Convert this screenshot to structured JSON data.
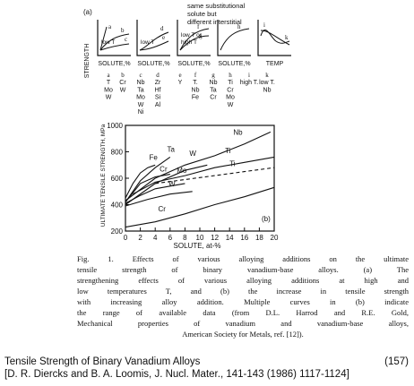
{
  "panel_a": {
    "label": "(a)",
    "annotation": [
      "same substitutional",
      "solute but",
      "different interstitial"
    ],
    "ylabel": "STRENGTH",
    "box_labels": [
      [
        "a",
        "b",
        "c"
      ],
      [
        "d",
        "e"
      ],
      [
        "f",
        "g"
      ],
      [
        "h"
      ],
      [
        "i",
        "k"
      ]
    ],
    "box_notes": [
      [
        "low T"
      ],
      [
        "low T"
      ],
      [
        "low T or",
        "high T"
      ],
      [],
      []
    ],
    "xlabels": [
      "SOLUTE,%",
      "SOLUTE,%",
      "SOLUTE,%",
      "SOLUTE,%",
      "TEMP"
    ],
    "columns": [
      {
        "head": "a",
        "items": [
          "T",
          "Mo",
          "W"
        ]
      },
      {
        "head": "b",
        "items": [
          "Cr",
          "W"
        ]
      },
      {
        "head": "c",
        "items": [
          "Nb",
          "Ta",
          "Mo",
          "W",
          "Ni"
        ]
      },
      {
        "head": "d",
        "items": [
          "Zr",
          "Hf",
          "Si",
          "Al"
        ]
      },
      {
        "head": "e",
        "items": [
          "Y"
        ]
      },
      {
        "head": "f",
        "items": [
          "T.",
          "Nb",
          "Fe"
        ]
      },
      {
        "head": "g",
        "items": [
          "Nb",
          "Ta",
          "Cr"
        ]
      },
      {
        "head": "h",
        "items": [
          "Ti",
          "Cr",
          "Mo",
          "W"
        ]
      },
      {
        "head": "i",
        "items": [
          "high T."
        ]
      },
      {
        "head": "k",
        "items": [
          "low T.",
          "Nb"
        ]
      }
    ]
  },
  "panel_b": {
    "label": "(b)",
    "ylabel": "ULTIMATE TENSILE STRENGTH, MPa",
    "xlabel": "SOLUTE, at-%",
    "curve_labels": [
      "Nb",
      "Ta",
      "W",
      "Fe",
      "Ti",
      "Cr",
      "Mo",
      "Ti",
      "W",
      "Cr"
    ]
  },
  "chart_data": {
    "type": "line",
    "title": "",
    "xlabel": "SOLUTE, at-%",
    "ylabel": "ULTIMATE TENSILE STRENGTH, MPa",
    "xlim": [
      0,
      20
    ],
    "ylim": [
      200,
      1000
    ],
    "xticks": [
      0,
      2,
      4,
      6,
      8,
      10,
      12,
      14,
      16,
      18,
      20
    ],
    "yticks": [
      200,
      400,
      600,
      800,
      1000
    ],
    "series": [
      {
        "name": "Nb",
        "x": [
          0,
          4,
          8,
          12,
          16,
          19.5
        ],
        "y": [
          430,
          600,
          700,
          770,
          860,
          950
        ]
      },
      {
        "name": "Ta",
        "x": [
          0,
          2,
          4,
          6
        ],
        "y": [
          420,
          580,
          680,
          760
        ]
      },
      {
        "name": "W",
        "x": [
          0,
          4,
          8,
          11
        ],
        "y": [
          400,
          560,
          660,
          700
        ]
      },
      {
        "name": "Fe",
        "x": [
          0,
          1,
          2,
          3,
          4
        ],
        "y": [
          450,
          560,
          640,
          680,
          700
        ]
      },
      {
        "name": "Ti",
        "x": [
          1,
          4,
          8,
          12,
          16,
          20
        ],
        "y": [
          480,
          570,
          620,
          680,
          720,
          760
        ]
      },
      {
        "name": "Ti",
        "x": [
          4,
          8,
          12,
          16,
          20
        ],
        "y": [
          560,
          590,
          620,
          650,
          680
        ]
      },
      {
        "name": "Cr",
        "x": [
          0,
          2,
          4,
          6
        ],
        "y": [
          420,
          560,
          610,
          630
        ]
      },
      {
        "name": "Mo",
        "x": [
          0,
          2,
          4,
          6,
          8
        ],
        "y": [
          410,
          470,
          520,
          540,
          560
        ]
      },
      {
        "name": "W",
        "x": [
          0,
          3,
          6,
          9
        ],
        "y": [
          390,
          440,
          480,
          500
        ]
      },
      {
        "name": "Cr",
        "x": [
          0,
          4,
          8,
          12,
          16,
          20
        ],
        "y": [
          230,
          270,
          330,
          400,
          460,
          530
        ]
      }
    ],
    "legend": "none",
    "grid": false,
    "panel_label": "(b)"
  },
  "caption": [
    "Fig. 1. Effects of various alloying additions on the ultimate",
    "tensile strength of binary vanadium-base alloys. (a) The",
    "strengthening effects of various alloying additions at high and",
    "low temperatures T, and (b) the increase in tensile strength",
    "with increasing alloy addition. Multiple curves in (b) indicate",
    "the range of available data (from D.L. Harrod and R.E. Gold,",
    "Mechanical properties of vanadium and vanadium-base alloys,",
    "American Society for Metals, ref. [12])."
  ],
  "footer": {
    "title": "Tensile Strength of Binary Vanadium Alloys",
    "reference": "[D. R. Diercks and B. A. Loomis, J. Nucl. Mater., 141-143 (1986) 1117-1124]",
    "page_number": "(157)"
  }
}
